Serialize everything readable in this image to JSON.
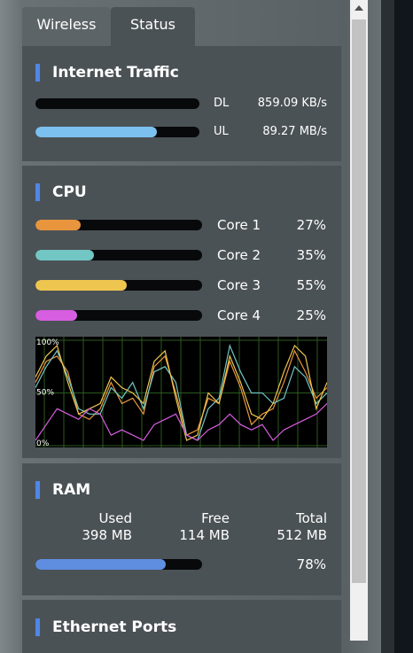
{
  "tabs": [
    "Wireless",
    "Status"
  ],
  "traffic": {
    "title": "Internet Traffic",
    "rows": [
      {
        "label": "DL",
        "value": "859.09 KB/s",
        "meter": 0
      },
      {
        "label": "UL",
        "value": "89.27 MB/s",
        "meter": 74
      }
    ]
  },
  "cpu": {
    "title": "CPU",
    "cores": [
      {
        "label": "Core 1",
        "color": "#e8953e",
        "usage": {
          "value": 27,
          "label": "27%"
        }
      },
      {
        "label": "Core 2",
        "color": "#72c6c4",
        "usage": {
          "value": 35,
          "label": "35%"
        }
      },
      {
        "label": "Core 3",
        "color": "#eec54f",
        "usage": {
          "value": 55,
          "label": "55%"
        }
      },
      {
        "label": "Core 4",
        "color": "#d75ee0",
        "usage": {
          "value": 25,
          "label": "25%"
        }
      }
    ],
    "graph": {
      "ylim": [
        0,
        100
      ],
      "yticks": [
        {
          "value": 100,
          "label": "100%"
        },
        {
          "value": 50,
          "label": "50%"
        },
        {
          "value": 0,
          "label": "0%"
        }
      ],
      "series": [
        {
          "color": "#e8953e",
          "values": [
            60,
            80,
            85,
            70,
            30,
            25,
            35,
            60,
            40,
            45,
            30,
            75,
            85,
            50,
            10,
            15,
            45,
            40,
            80,
            55,
            20,
            30,
            35,
            60,
            90,
            70,
            45,
            55
          ]
        },
        {
          "color": "#72c6c4",
          "values": [
            55,
            75,
            90,
            65,
            35,
            30,
            30,
            55,
            45,
            60,
            35,
            70,
            75,
            60,
            10,
            5,
            35,
            45,
            95,
            70,
            50,
            50,
            40,
            45,
            75,
            65,
            40,
            50
          ]
        },
        {
          "color": "#eec54f",
          "values": [
            65,
            85,
            95,
            60,
            30,
            35,
            40,
            65,
            55,
            50,
            40,
            80,
            90,
            45,
            5,
            10,
            50,
            40,
            85,
            60,
            30,
            25,
            40,
            70,
            95,
            85,
            35,
            60
          ]
        },
        {
          "color": "#d75ee0",
          "values": [
            5,
            20,
            35,
            30,
            25,
            35,
            30,
            10,
            15,
            10,
            5,
            20,
            25,
            30,
            10,
            5,
            15,
            20,
            30,
            20,
            15,
            20,
            5,
            15,
            20,
            25,
            30,
            40
          ]
        }
      ]
    }
  },
  "ram": {
    "title": "RAM",
    "columns": [
      {
        "header": "Used",
        "value": "398 MB"
      },
      {
        "header": "Free",
        "value": "114 MB"
      },
      {
        "header": "Total",
        "value": "512 MB"
      }
    ],
    "usage": {
      "value": 78,
      "label": "78%"
    }
  },
  "ethernet": {
    "title": "Ethernet Ports"
  }
}
